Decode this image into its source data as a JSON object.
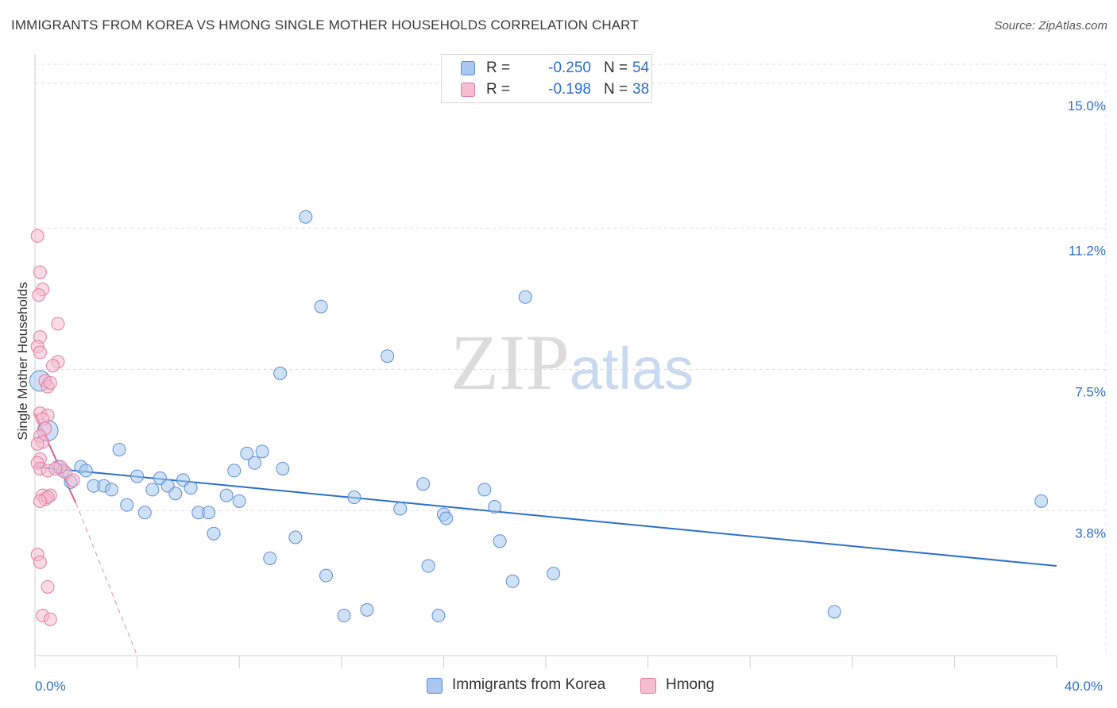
{
  "chart_data": {
    "type": "scatter",
    "title": "IMMIGRANTS FROM KOREA VS HMONG SINGLE MOTHER HOUSEHOLDS CORRELATION CHART",
    "source": "Source: ZipAtlas.com",
    "xlabel": "",
    "ylabel": "Single Mother Households",
    "xlim": [
      0,
      40
    ],
    "ylim": [
      0,
      15.5
    ],
    "x_tick_labels": [
      {
        "value": 0,
        "label": "0.0%"
      },
      {
        "value": 40,
        "label": "40.0%"
      }
    ],
    "y_tick_labels": [
      {
        "value": 3.8,
        "label": "3.8%"
      },
      {
        "value": 7.5,
        "label": "7.5%"
      },
      {
        "value": 11.2,
        "label": "11.2%"
      },
      {
        "value": 15.0,
        "label": "15.0%"
      }
    ],
    "grid": true,
    "legend_position": "bottom-center",
    "watermark": "ZIPatlas",
    "stats_box": {
      "rows": [
        {
          "series": "Immigrants from Korea",
          "r_label": "R =",
          "r_value": "-0.250",
          "n_label": "N =",
          "n_value": "54"
        },
        {
          "series": "Hmong",
          "r_label": "R =",
          "r_value": "-0.198",
          "n_label": "N =",
          "n_value": "38"
        }
      ]
    },
    "series": [
      {
        "name": "Immigrants from Korea",
        "fill": "#a8c8f0",
        "stroke": "#5b8fd6",
        "line_color": "#2c6fcc",
        "trend": {
          "x": [
            0.0,
            40.0
          ],
          "y": [
            4.95,
            2.35
          ],
          "dashed_to": null
        },
        "points": [
          {
            "x": 0.2,
            "y": 7.2,
            "big": true
          },
          {
            "x": 0.5,
            "y": 5.9,
            "big": true
          },
          {
            "x": 0.9,
            "y": 4.95
          },
          {
            "x": 1.1,
            "y": 4.85
          },
          {
            "x": 1.4,
            "y": 4.55
          },
          {
            "x": 1.8,
            "y": 4.95
          },
          {
            "x": 2.0,
            "y": 4.85
          },
          {
            "x": 2.3,
            "y": 4.45
          },
          {
            "x": 2.7,
            "y": 4.45
          },
          {
            "x": 3.0,
            "y": 4.35
          },
          {
            "x": 3.3,
            "y": 5.4
          },
          {
            "x": 3.6,
            "y": 3.95
          },
          {
            "x": 4.0,
            "y": 4.7
          },
          {
            "x": 4.3,
            "y": 3.75
          },
          {
            "x": 4.6,
            "y": 4.35
          },
          {
            "x": 4.9,
            "y": 4.65
          },
          {
            "x": 5.2,
            "y": 4.45
          },
          {
            "x": 5.5,
            "y": 4.25
          },
          {
            "x": 5.8,
            "y": 4.6
          },
          {
            "x": 6.1,
            "y": 4.4
          },
          {
            "x": 6.4,
            "y": 3.75
          },
          {
            "x": 6.8,
            "y": 3.75
          },
          {
            "x": 7.0,
            "y": 3.2
          },
          {
            "x": 7.5,
            "y": 4.2
          },
          {
            "x": 7.8,
            "y": 4.85
          },
          {
            "x": 8.0,
            "y": 4.05
          },
          {
            "x": 8.3,
            "y": 5.3
          },
          {
            "x": 8.6,
            "y": 5.05
          },
          {
            "x": 8.9,
            "y": 5.35
          },
          {
            "x": 9.2,
            "y": 2.55
          },
          {
            "x": 9.6,
            "y": 7.4
          },
          {
            "x": 9.7,
            "y": 4.9
          },
          {
            "x": 10.2,
            "y": 3.1
          },
          {
            "x": 10.6,
            "y": 11.5
          },
          {
            "x": 11.2,
            "y": 9.15
          },
          {
            "x": 11.4,
            "y": 2.1
          },
          {
            "x": 12.1,
            "y": 1.05
          },
          {
            "x": 12.5,
            "y": 4.15
          },
          {
            "x": 13.0,
            "y": 1.2
          },
          {
            "x": 13.8,
            "y": 7.85
          },
          {
            "x": 14.3,
            "y": 3.85
          },
          {
            "x": 15.2,
            "y": 4.5
          },
          {
            "x": 15.4,
            "y": 2.35
          },
          {
            "x": 15.8,
            "y": 1.05
          },
          {
            "x": 16.0,
            "y": 3.7
          },
          {
            "x": 16.1,
            "y": 3.6
          },
          {
            "x": 17.6,
            "y": 4.35
          },
          {
            "x": 18.0,
            "y": 3.9
          },
          {
            "x": 18.2,
            "y": 3.0
          },
          {
            "x": 18.7,
            "y": 1.95
          },
          {
            "x": 19.2,
            "y": 9.4
          },
          {
            "x": 20.3,
            "y": 2.15
          },
          {
            "x": 31.3,
            "y": 1.15
          },
          {
            "x": 39.4,
            "y": 4.05
          }
        ]
      },
      {
        "name": "Hmong",
        "fill": "#f6bcd0",
        "stroke": "#e27ca0",
        "line_color": "#e05a8a",
        "trend": {
          "x": [
            0.0,
            1.6
          ],
          "y": [
            6.35,
            4.0
          ],
          "dashed_to": {
            "x": 4.0,
            "y": 0.0
          }
        },
        "points": [
          {
            "x": 0.1,
            "y": 11.0
          },
          {
            "x": 0.2,
            "y": 10.05
          },
          {
            "x": 0.3,
            "y": 9.6
          },
          {
            "x": 0.15,
            "y": 9.45
          },
          {
            "x": 0.9,
            "y": 8.7
          },
          {
            "x": 0.2,
            "y": 8.35
          },
          {
            "x": 0.1,
            "y": 8.1
          },
          {
            "x": 0.2,
            "y": 7.95
          },
          {
            "x": 0.9,
            "y": 7.7
          },
          {
            "x": 0.7,
            "y": 7.6
          },
          {
            "x": 0.4,
            "y": 7.2
          },
          {
            "x": 0.5,
            "y": 7.05
          },
          {
            "x": 0.6,
            "y": 7.15
          },
          {
            "x": 0.2,
            "y": 6.35
          },
          {
            "x": 0.5,
            "y": 6.3
          },
          {
            "x": 0.3,
            "y": 6.2
          },
          {
            "x": 0.4,
            "y": 5.95
          },
          {
            "x": 0.2,
            "y": 5.75
          },
          {
            "x": 0.3,
            "y": 5.6
          },
          {
            "x": 0.1,
            "y": 5.55
          },
          {
            "x": 0.2,
            "y": 5.15
          },
          {
            "x": 0.1,
            "y": 5.05
          },
          {
            "x": 0.2,
            "y": 4.9
          },
          {
            "x": 0.5,
            "y": 4.85
          },
          {
            "x": 1.2,
            "y": 4.8
          },
          {
            "x": 1.5,
            "y": 4.6
          },
          {
            "x": 0.3,
            "y": 4.2
          },
          {
            "x": 0.6,
            "y": 4.2
          },
          {
            "x": 0.4,
            "y": 4.1
          },
          {
            "x": 0.5,
            "y": 4.15
          },
          {
            "x": 0.2,
            "y": 4.05
          },
          {
            "x": 0.1,
            "y": 2.65
          },
          {
            "x": 0.2,
            "y": 2.45
          },
          {
            "x": 0.5,
            "y": 1.8
          },
          {
            "x": 0.3,
            "y": 1.05
          },
          {
            "x": 0.6,
            "y": 0.95
          },
          {
            "x": 1.0,
            "y": 4.95
          },
          {
            "x": 0.8,
            "y": 4.9
          }
        ]
      }
    ]
  }
}
